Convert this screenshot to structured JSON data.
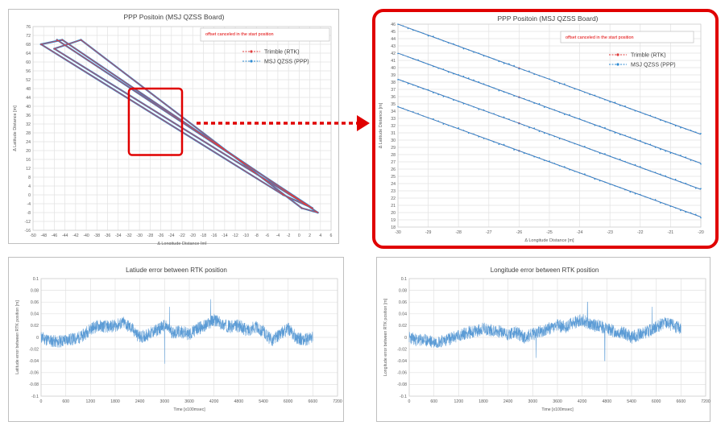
{
  "chart_data": [
    {
      "type": "scatter",
      "title": "PPP Positoin (MSJ QZSS Board)",
      "annotation": "offset canceled in the start position",
      "xlabel": "Δ Longitude Distance [m]",
      "ylabel": "Δ Latitude Distance [m]",
      "xlim": [
        -50,
        6
      ],
      "ylim": [
        -16,
        76
      ],
      "xticks": [
        -50,
        -48,
        -46,
        -44,
        -42,
        -40,
        -38,
        -36,
        -34,
        -32,
        -30,
        -28,
        -26,
        -24,
        -22,
        -20,
        -18,
        -16,
        -14,
        -12,
        -10,
        -8,
        -6,
        -4,
        -2,
        0,
        2,
        4,
        6
      ],
      "yticks": [
        -16,
        -12,
        -8,
        -4,
        0,
        4,
        8,
        12,
        16,
        20,
        24,
        28,
        32,
        36,
        40,
        44,
        48,
        52,
        56,
        60,
        64,
        68,
        72,
        76
      ],
      "grid": true,
      "legend_position": "top-right",
      "series": [
        {
          "name": "Trimble (RTK)",
          "color": "#e03c3c",
          "x": [
            -45.5,
            2.5,
            -3,
            -48.5,
            -44.5,
            3.5,
            0.5,
            -41,
            -46,
            1
          ],
          "y": [
            70,
            -6,
            0,
            68,
            70,
            -8,
            -6,
            70,
            66,
            -4
          ]
        },
        {
          "name": "MSJ QZSS (PPP)",
          "color": "#2d8bd3",
          "x": [
            -45.5,
            2.5,
            -3,
            -48.5,
            -44.5,
            3.5,
            0.5,
            -41,
            -46,
            1
          ],
          "y": [
            70,
            -6,
            0,
            68,
            70,
            -8,
            -6,
            70,
            66,
            -4
          ]
        }
      ],
      "highlight_box": {
        "x": [
          -32,
          -22
        ],
        "y": [
          18,
          48
        ]
      }
    },
    {
      "type": "scatter",
      "title": "PPP Positoin (MSJ QZSS Board)",
      "annotation": "offset canceled in the start position",
      "xlabel": "Δ Longitude Distance [m]",
      "ylabel": "Δ Latitude Distance [m]",
      "xlim": [
        -30,
        -20
      ],
      "ylim": [
        18,
        46
      ],
      "xticks": [
        -30,
        -29,
        -28,
        -27,
        -26,
        -25,
        -24,
        -23,
        -22,
        -21,
        -20
      ],
      "yticks": [
        18,
        19,
        20,
        21,
        22,
        23,
        24,
        25,
        26,
        27,
        28,
        29,
        30,
        31,
        32,
        33,
        34,
        35,
        36,
        37,
        38,
        39,
        40,
        41,
        42,
        43,
        44,
        45,
        46
      ],
      "grid": true,
      "legend_position": "top-right",
      "series": [
        {
          "name": "Trimble (RTK)",
          "color": "#e03c3c",
          "lines": [
            {
              "x": [
                -30,
                -20
              ],
              "y": [
                46,
                30.8
              ]
            },
            {
              "x": [
                -30,
                -20
              ],
              "y": [
                42,
                26.8
              ]
            },
            {
              "x": [
                -30,
                -20
              ],
              "y": [
                38.4,
                23.2
              ]
            },
            {
              "x": [
                -30,
                -20
              ],
              "y": [
                34.6,
                19.4
              ]
            }
          ]
        },
        {
          "name": "MSJ QZSS (PPP)",
          "color": "#2d8bd3",
          "lines": [
            {
              "x": [
                -30,
                -20
              ],
              "y": [
                46,
                30.8
              ]
            },
            {
              "x": [
                -30,
                -20
              ],
              "y": [
                42,
                26.8
              ]
            },
            {
              "x": [
                -30,
                -20
              ],
              "y": [
                38.4,
                23.2
              ]
            },
            {
              "x": [
                -30,
                -20
              ],
              "y": [
                34.6,
                19.4
              ]
            }
          ]
        }
      ]
    },
    {
      "type": "line",
      "title": "Latiude error between RTK position",
      "xlabel": "Time [x100msec]",
      "ylabel": "Latitude error between RTK position [m]",
      "xlim": [
        0,
        7200
      ],
      "ylim": [
        -0.1,
        0.1
      ],
      "xticks": [
        0,
        600,
        1200,
        1800,
        2400,
        3000,
        3600,
        4200,
        4800,
        5400,
        6000,
        6600,
        7200
      ],
      "yticks": [
        -0.1,
        -0.08,
        -0.06,
        -0.04,
        -0.02,
        0,
        0.02,
        0.04,
        0.06,
        0.08,
        0.1
      ],
      "yticklabels": [
        "-0.1",
        "-0.08",
        "-0.06",
        "-0.04",
        "-0.02",
        "0",
        "0.02",
        "0.04",
        "0.06",
        "0.08",
        "0.1"
      ],
      "grid": true,
      "series": [
        {
          "color": "#5b9bd5",
          "x": [
            0,
            200,
            400,
            600,
            800,
            1000,
            1200,
            1400,
            1600,
            1800,
            2000,
            2200,
            2400,
            2600,
            2800,
            3000,
            3200,
            3400,
            3600,
            3800,
            4000,
            4200,
            4400,
            4600,
            4800,
            5000,
            5200,
            5400,
            5600,
            5800,
            6000,
            6200,
            6400,
            6600
          ],
          "y": [
            0.0,
            -0.005,
            -0.008,
            -0.004,
            -0.003,
            0.002,
            0.015,
            0.02,
            0.018,
            0.02,
            0.025,
            0.015,
            0.0,
            0.005,
            0.012,
            0.02,
            0.008,
            0.01,
            0.005,
            0.015,
            0.02,
            0.03,
            0.022,
            0.018,
            0.02,
            0.012,
            0.018,
            0.01,
            -0.005,
            0.005,
            0.015,
            0.0,
            -0.005,
            0.0
          ]
        }
      ]
    },
    {
      "type": "line",
      "title": "Longitude error between RTK position",
      "xlabel": "Time [x100msec]",
      "ylabel": "Longitude error between RTK position [m]",
      "xlim": [
        0,
        7200
      ],
      "ylim": [
        -0.1,
        0.1
      ],
      "xticks": [
        0,
        600,
        1200,
        1800,
        2400,
        3000,
        3600,
        4200,
        4800,
        5400,
        6000,
        6600,
        7200
      ],
      "yticks": [
        -0.1,
        -0.08,
        -0.06,
        -0.04,
        -0.02,
        0,
        0.02,
        0.04,
        0.06,
        0.08,
        0.1
      ],
      "yticklabels": [
        "-0.1",
        "-0.08",
        "-0.06",
        "-0.04",
        "-0.02",
        "0",
        "0.02",
        "0.04",
        "0.06",
        "0.08",
        "0.1"
      ],
      "grid": true,
      "series": [
        {
          "color": "#5b9bd5",
          "x": [
            0,
            200,
            400,
            600,
            800,
            1000,
            1200,
            1400,
            1600,
            1800,
            2000,
            2200,
            2400,
            2600,
            2800,
            3000,
            3200,
            3400,
            3600,
            3800,
            4000,
            4200,
            4400,
            4600,
            4800,
            5000,
            5200,
            5400,
            5600,
            5800,
            6000,
            6200,
            6400,
            6600
          ],
          "y": [
            0.0,
            -0.005,
            -0.005,
            -0.008,
            -0.006,
            -0.002,
            0.003,
            0.008,
            0.01,
            0.015,
            0.012,
            0.01,
            0.005,
            0.008,
            0.0,
            0.005,
            0.01,
            0.015,
            0.02,
            0.018,
            0.025,
            0.03,
            0.022,
            0.02,
            0.015,
            0.01,
            0.008,
            0.0,
            0.005,
            0.01,
            0.018,
            0.025,
            0.02,
            0.015
          ]
        }
      ]
    }
  ]
}
